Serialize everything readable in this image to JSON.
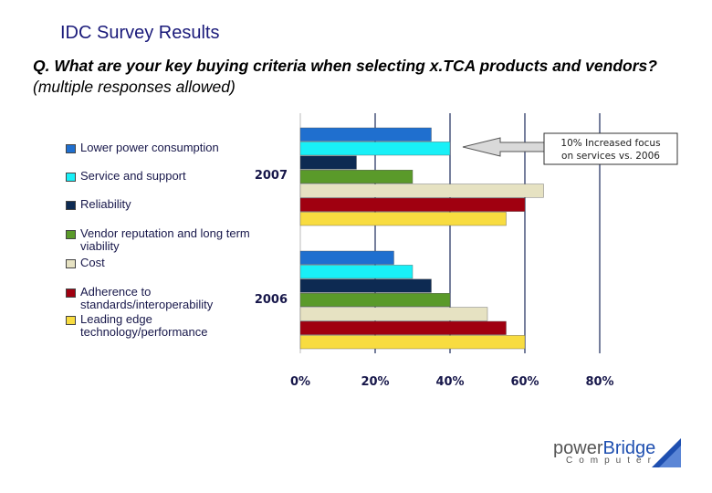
{
  "slide": {
    "title": "IDC Survey Results",
    "question_lead": "Q. What are your key buying criteria when selecting x.TCA products and vendors?",
    "question_tail": "(multiple responses allowed)"
  },
  "brand": {
    "main_a": "power",
    "main_b": "Bridge",
    "sub": "Computer",
    "accent": "#1e4fb0"
  },
  "chart_data": {
    "type": "bar",
    "orientation": "horizontal",
    "groups": [
      "2007",
      "2006"
    ],
    "categories": [
      "Lower power consumption",
      "Service and support",
      "Reliability",
      "Vendor reputation and long term viability",
      "Cost",
      "Adherence to standards/interoperability",
      "Leading edge technology/performance"
    ],
    "colors": [
      "#1f6fcf",
      "#19f0f7",
      "#0d2a52",
      "#5a9a2a",
      "#e6e2c2",
      "#a00010",
      "#f8dc40"
    ],
    "series": [
      {
        "name": "2007",
        "values": [
          35,
          40,
          15,
          30,
          65,
          60,
          55
        ]
      },
      {
        "name": "2006",
        "values": [
          25,
          30,
          35,
          40,
          50,
          55,
          60
        ]
      }
    ],
    "xlim": [
      0,
      80
    ],
    "xticks": [
      "0%",
      "20%",
      "40%",
      "60%",
      "80%"
    ],
    "tick_values": [
      0,
      20,
      40,
      60,
      80
    ],
    "grid": true,
    "legend_position": "left",
    "annotation": "10% Increased focus on services vs. 2006"
  }
}
